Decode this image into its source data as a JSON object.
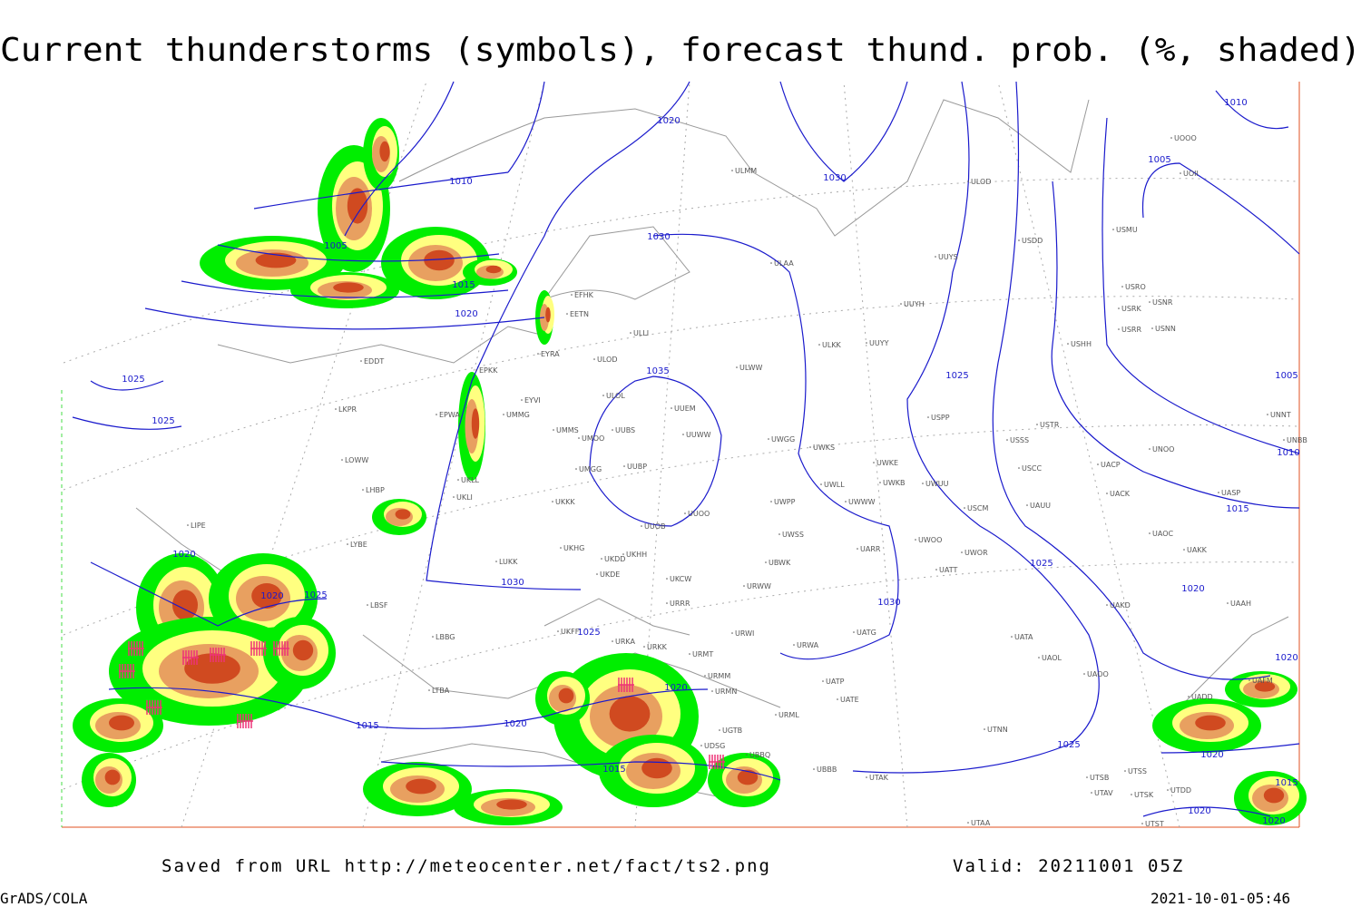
{
  "header": {
    "title": "Current thunderstorms (symbols), forecast thund. prob. (%, shaded)"
  },
  "footer": {
    "source": "Saved from URL http://meteocenter.net/fact/ts2.png",
    "valid": "Valid: 20211001 05Z",
    "software": "GrADS/COLA",
    "timestamp": "2021-10-01-05:46"
  },
  "isobar_labels": [
    1020,
    1030,
    1010,
    1005,
    1015,
    1020,
    1030,
    1035,
    1025,
    1025,
    1025,
    1020,
    1020,
    1025,
    1030,
    1025,
    1030,
    1025,
    1020,
    1015,
    1010,
    1005,
    1010,
    1005,
    1020,
    1020,
    1015,
    1015,
    1025,
    1020,
    1020,
    1015,
    1020,
    1020
  ],
  "station_labels": [
    "ULMM",
    "ULOD",
    "USDD",
    "USMU",
    "UUYS",
    "ULAA",
    "EFHK",
    "EETN",
    "ULLI",
    "UUYH",
    "USRO",
    "USRK",
    "USNR",
    "USRR",
    "USNN",
    "USHH",
    "ULKK",
    "UUYY",
    "EDDT",
    "EYRA",
    "ULOD",
    "ULWW",
    "EPKK",
    "ULOL",
    "UUEM",
    "EYVI",
    "LKPR",
    "EPWA",
    "UMMG",
    "UMMS",
    "UMOO",
    "UUBS",
    "UUWW",
    "UWGG",
    "UWKS",
    "USPP",
    "USTR",
    "USSS",
    "UNOO",
    "UNNT",
    "UNBB",
    "LOWW",
    "UMGG",
    "UUBP",
    "UWKE",
    "UWKB",
    "UWUU",
    "USCC",
    "UACP",
    "UKLL",
    "LHBP",
    "UKLI",
    "UWLL",
    "UWWW",
    "UACK",
    "UASP",
    "UKKK",
    "UWPP",
    "UUOO",
    "UUOB",
    "USCM",
    "UAUU",
    "LIPE",
    "LYBE",
    "UWSS",
    "UARR",
    "UWOO",
    "UWOR",
    "UAOC",
    "UAKK",
    "LUKK",
    "UKHG",
    "UKDD",
    "UKHH",
    "UKDE",
    "UBWK",
    "UATT",
    "UKCW",
    "LBSF",
    "URRR",
    "URWW",
    "UAKD",
    "UAAH",
    "UKFF",
    "URKA",
    "URKK",
    "URWI",
    "UATG",
    "LBBG",
    "URMT",
    "URWA",
    "UATA",
    "UAOL",
    "UAOO",
    "URMM",
    "UATP",
    "LTBA",
    "URMN",
    "UATE",
    "URML",
    "UTNN",
    "UGTB",
    "UDSG",
    "UBBQ",
    "UBBB",
    "UTAK",
    "UTSB",
    "UTSS",
    "UTAV",
    "UTSK",
    "UTAA",
    "UTST",
    "UTDD",
    "UADD",
    "UAFM",
    "UOOO",
    "UOII"
  ]
}
